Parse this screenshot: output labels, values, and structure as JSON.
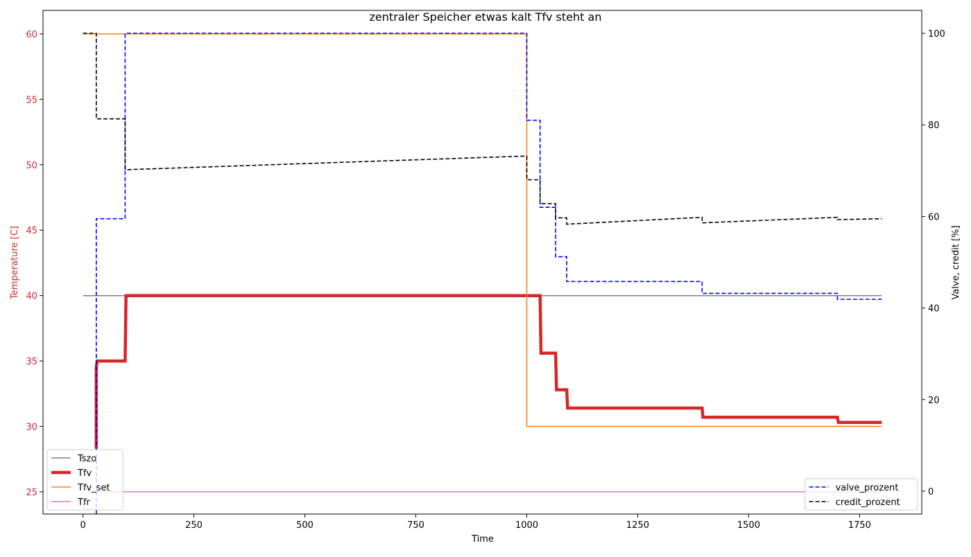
{
  "chart_data": {
    "type": "line",
    "title": "zentraler Speicher etwas kalt Tfv steht an",
    "xlabel": "Time",
    "ylabel_left": "Temperature [C]",
    "ylabel_right": "Valve, credit [%]",
    "xlim": [
      -90,
      1890
    ],
    "ylim_left": [
      23.3,
      61.8
    ],
    "ylim_right": [
      -5,
      105
    ],
    "xticks": [
      0,
      250,
      500,
      750,
      1000,
      1250,
      1500,
      1750
    ],
    "yticks_left": [
      25,
      30,
      35,
      40,
      45,
      50,
      55,
      60
    ],
    "yticks_right": [
      0,
      20,
      40,
      60,
      80,
      100
    ],
    "legend_left_position": "lower left",
    "legend_right_position": "lower right",
    "colors": {
      "left_axis": "#d62728",
      "right_axis": "#000000"
    },
    "series_left": [
      {
        "name": "Tszo",
        "color": "#7f7f7f",
        "width": 1.5,
        "dash": "",
        "x": [
          0,
          1800
        ],
        "y": [
          40.0,
          40.0
        ]
      },
      {
        "name": "Tfv",
        "color": "#d62728",
        "width": 4.5,
        "dash": "",
        "x": [
          30,
          30,
          32,
          95,
          97,
          1030,
          1032,
          1065,
          1067,
          1090,
          1092,
          1395,
          1397,
          1700,
          1702,
          1800
        ],
        "y": [
          28.3,
          34.5,
          35.0,
          35.0,
          40.0,
          40.0,
          35.6,
          35.6,
          32.8,
          32.8,
          31.4,
          31.4,
          30.7,
          30.7,
          30.3,
          30.3
        ]
      },
      {
        "name": "Tfv_set",
        "color": "#ff7f0e",
        "width": 1.5,
        "dash": "",
        "x": [
          0,
          1000,
          1000,
          1800
        ],
        "y": [
          60.0,
          60.0,
          30.0,
          30.0
        ]
      },
      {
        "name": "Tfr",
        "color": "#e377c2",
        "width": 1.5,
        "dash": "",
        "x": [
          0,
          1800
        ],
        "y": [
          25.0,
          25.0
        ]
      }
    ],
    "series_right": [
      {
        "name": "valve_prozent",
        "color": "#0000ff",
        "width": 1.6,
        "dash": "6,3",
        "x": [
          30,
          30,
          95,
          95,
          1000,
          1000,
          1030,
          1030,
          1065,
          1065,
          1090,
          1090,
          1395,
          1395,
          1700,
          1700,
          1800
        ],
        "y": [
          -5,
          59.5,
          59.5,
          100,
          100,
          81,
          81,
          62,
          62,
          51.2,
          51.2,
          45.8,
          45.8,
          43.2,
          43.2,
          41.9,
          41.9
        ]
      },
      {
        "name": "credit_prozent",
        "color": "#000000",
        "width": 1.6,
        "dash": "6,3",
        "x": [
          0,
          30,
          30,
          95,
          95,
          1000,
          1000,
          1030,
          1030,
          1065,
          1065,
          1090,
          1090,
          1395,
          1395,
          1700,
          1700,
          1800
        ],
        "y": [
          100,
          100,
          81.3,
          81.3,
          70.2,
          73.2,
          68,
          68,
          62.8,
          62.8,
          59.7,
          59.7,
          58.3,
          59.8,
          58.6,
          59.8,
          59.3,
          59.5
        ]
      }
    ]
  }
}
